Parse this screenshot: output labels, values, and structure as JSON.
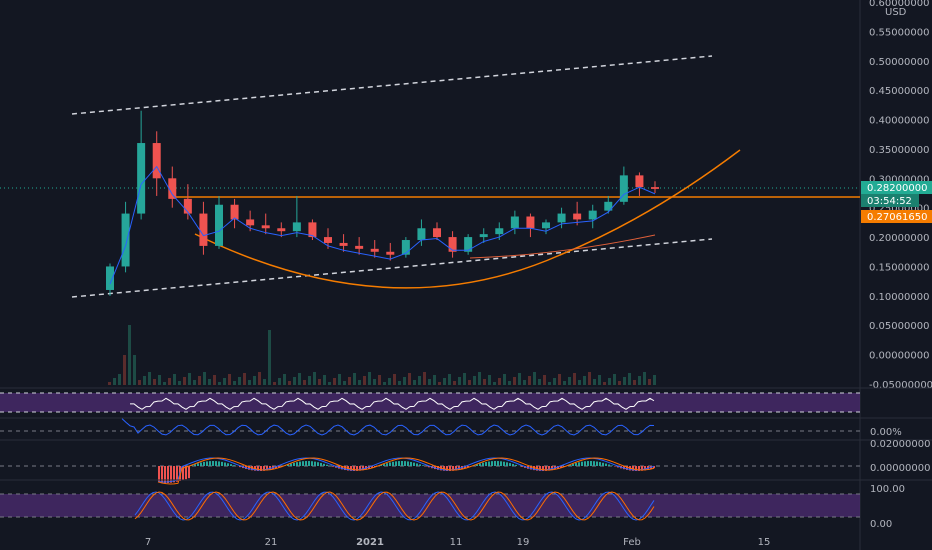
{
  "chart_data": {
    "type": "candlestick",
    "currency": "USD",
    "price_axis": {
      "ylim": [
        -0.05,
        0.6
      ],
      "ticks": [
        "0.60000000",
        "0.55000000",
        "0.50000000",
        "0.45000000",
        "0.40000000",
        "0.35000000",
        "0.30000000",
        "0.25000000",
        "0.20000000",
        "0.15000000",
        "0.10000000",
        "0.05000000",
        "0.00000000",
        "-0.05000000"
      ]
    },
    "price_tags": {
      "last_price": "0.28200000",
      "countdown": "03:54:52",
      "ma_value": "0.27061650"
    },
    "date_labels": [
      "7",
      "21",
      "2021",
      "11",
      "19",
      "Feb",
      "15"
    ],
    "indicator_labels": {
      "roc_zero": "0.00%",
      "macd_top": "0.02000000",
      "macd_zero": "0.00000000",
      "stoch_top": "100.00",
      "stoch_bottom": "0.00"
    },
    "colors": {
      "background": "#131722",
      "up": "#26a69a",
      "down": "#ef5350",
      "orange": "#f57c00",
      "teal_tag": "#22ab94",
      "purple_band": "#4a2a6e",
      "blue_line": "#2962ff",
      "white_dashed": "#d1d4dc"
    },
    "series": [
      {
        "x": 0,
        "o": 0.11,
        "h": 0.155,
        "l": 0.1,
        "c": 0.15
      },
      {
        "x": 1,
        "o": 0.15,
        "h": 0.26,
        "l": 0.14,
        "c": 0.24
      },
      {
        "x": 2,
        "o": 0.24,
        "h": 0.415,
        "l": 0.23,
        "c": 0.36
      },
      {
        "x": 3,
        "o": 0.36,
        "h": 0.38,
        "l": 0.27,
        "c": 0.3
      },
      {
        "x": 4,
        "o": 0.3,
        "h": 0.32,
        "l": 0.25,
        "c": 0.265
      },
      {
        "x": 5,
        "o": 0.265,
        "h": 0.29,
        "l": 0.23,
        "c": 0.24
      },
      {
        "x": 6,
        "o": 0.24,
        "h": 0.26,
        "l": 0.17,
        "c": 0.185
      },
      {
        "x": 7,
        "o": 0.185,
        "h": 0.27,
        "l": 0.18,
        "c": 0.255
      },
      {
        "x": 8,
        "o": 0.255,
        "h": 0.265,
        "l": 0.215,
        "c": 0.23
      },
      {
        "x": 9,
        "o": 0.23,
        "h": 0.245,
        "l": 0.21,
        "c": 0.22
      },
      {
        "x": 10,
        "o": 0.22,
        "h": 0.24,
        "l": 0.205,
        "c": 0.215
      },
      {
        "x": 11,
        "o": 0.215,
        "h": 0.225,
        "l": 0.2,
        "c": 0.21
      },
      {
        "x": 12,
        "o": 0.21,
        "h": 0.27,
        "l": 0.2,
        "c": 0.225
      },
      {
        "x": 13,
        "o": 0.225,
        "h": 0.23,
        "l": 0.195,
        "c": 0.2
      },
      {
        "x": 14,
        "o": 0.2,
        "h": 0.215,
        "l": 0.18,
        "c": 0.19
      },
      {
        "x": 15,
        "o": 0.19,
        "h": 0.205,
        "l": 0.175,
        "c": 0.185
      },
      {
        "x": 16,
        "o": 0.185,
        "h": 0.2,
        "l": 0.17,
        "c": 0.18
      },
      {
        "x": 17,
        "o": 0.18,
        "h": 0.195,
        "l": 0.165,
        "c": 0.175
      },
      {
        "x": 18,
        "o": 0.175,
        "h": 0.19,
        "l": 0.16,
        "c": 0.17
      },
      {
        "x": 19,
        "o": 0.17,
        "h": 0.2,
        "l": 0.165,
        "c": 0.195
      },
      {
        "x": 20,
        "o": 0.195,
        "h": 0.23,
        "l": 0.185,
        "c": 0.215
      },
      {
        "x": 21,
        "o": 0.215,
        "h": 0.225,
        "l": 0.195,
        "c": 0.2
      },
      {
        "x": 22,
        "o": 0.2,
        "h": 0.21,
        "l": 0.165,
        "c": 0.175
      },
      {
        "x": 23,
        "o": 0.175,
        "h": 0.205,
        "l": 0.17,
        "c": 0.2
      },
      {
        "x": 24,
        "o": 0.2,
        "h": 0.215,
        "l": 0.19,
        "c": 0.205
      },
      {
        "x": 25,
        "o": 0.205,
        "h": 0.225,
        "l": 0.195,
        "c": 0.215
      },
      {
        "x": 26,
        "o": 0.215,
        "h": 0.245,
        "l": 0.205,
        "c": 0.235
      },
      {
        "x": 27,
        "o": 0.235,
        "h": 0.24,
        "l": 0.2,
        "c": 0.215
      },
      {
        "x": 28,
        "o": 0.215,
        "h": 0.23,
        "l": 0.205,
        "c": 0.225
      },
      {
        "x": 29,
        "o": 0.225,
        "h": 0.25,
        "l": 0.215,
        "c": 0.24
      },
      {
        "x": 30,
        "o": 0.24,
        "h": 0.26,
        "l": 0.22,
        "c": 0.23
      },
      {
        "x": 31,
        "o": 0.23,
        "h": 0.255,
        "l": 0.215,
        "c": 0.245
      },
      {
        "x": 32,
        "o": 0.245,
        "h": 0.27,
        "l": 0.24,
        "c": 0.26
      },
      {
        "x": 33,
        "o": 0.26,
        "h": 0.32,
        "l": 0.255,
        "c": 0.305
      },
      {
        "x": 34,
        "o": 0.305,
        "h": 0.31,
        "l": 0.27,
        "c": 0.285
      },
      {
        "x": 35,
        "o": 0.285,
        "h": 0.295,
        "l": 0.275,
        "c": 0.282
      }
    ],
    "volume_spikes": [
      2,
      12
    ],
    "annotations": {
      "channel_upper": [
        [
          0,
          0.41
        ],
        [
          44,
          0.505
        ]
      ],
      "channel_lower": [
        [
          0,
          0.1
        ],
        [
          44,
          0.195
        ]
      ],
      "resistance": [
        [
          3,
          0.27
        ],
        [
          55,
          0.27
        ]
      ],
      "cup_curve": "parabolic",
      "ma_line": "orange-red"
    }
  }
}
